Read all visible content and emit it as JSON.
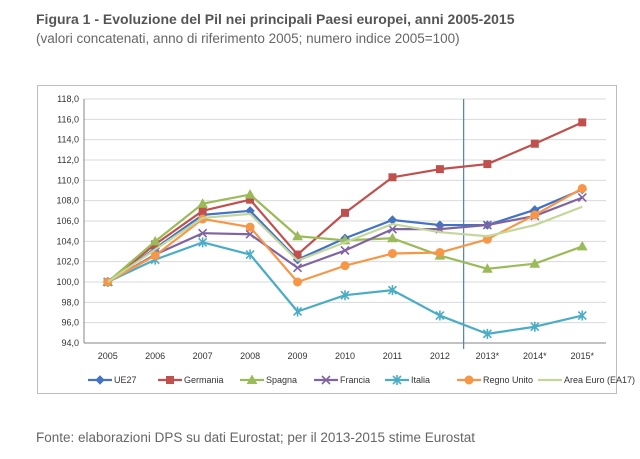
{
  "figure": {
    "title": "Figura 1 - Evoluzione del Pil nei principali Paesi europei, anni 2005-2015",
    "subtitle": "(valori concatenati, anno di riferimento 2005; numero indice 2005=100)",
    "source": "Fonte: elaborazioni DPS su dati Eurostat; per il 2013-2015 stime Eurostat"
  },
  "chart_data": {
    "type": "line",
    "title": "",
    "xlabel": "",
    "ylabel": "",
    "categories": [
      "2005",
      "2006",
      "2007",
      "2008",
      "2009",
      "2010",
      "2011",
      "2012",
      "2013*",
      "2014*",
      "2015*"
    ],
    "ylim": [
      94,
      118
    ],
    "yticks": [
      "94,0",
      "96,0",
      "98,0",
      "100,0",
      "102,0",
      "104,0",
      "106,0",
      "108,0",
      "110,0",
      "112,0",
      "114,0",
      "116,0",
      "118,0"
    ],
    "grid": true,
    "legend_position": "bottom",
    "vertical_marker_between": [
      "2012",
      "2013*"
    ],
    "series": [
      {
        "name": "UE27",
        "color": "#4472c4",
        "marker": "diamond",
        "values": [
          100.0,
          103.3,
          106.6,
          107.0,
          102.2,
          104.3,
          106.1,
          105.6,
          105.6,
          107.1,
          109.1
        ]
      },
      {
        "name": "Germania",
        "color": "#c0504d",
        "marker": "square",
        "values": [
          100.0,
          103.7,
          107.0,
          108.1,
          102.7,
          106.8,
          110.3,
          111.1,
          111.6,
          113.6,
          115.7
        ]
      },
      {
        "name": "Spagna",
        "color": "#9bbb59",
        "marker": "triangle",
        "values": [
          100.0,
          104.0,
          107.7,
          108.6,
          104.5,
          104.1,
          104.3,
          102.6,
          101.3,
          101.8,
          103.5
        ]
      },
      {
        "name": "Francia",
        "color": "#8064a2",
        "marker": "x",
        "values": [
          100.0,
          102.7,
          104.8,
          104.7,
          101.4,
          103.1,
          105.2,
          105.2,
          105.6,
          106.5,
          108.3
        ]
      },
      {
        "name": "Italia",
        "color": "#4bacc6",
        "marker": "star",
        "values": [
          100.0,
          102.2,
          103.9,
          102.7,
          97.1,
          98.7,
          99.2,
          96.7,
          94.9,
          95.6,
          96.7
        ]
      },
      {
        "name": "Regno Unito",
        "color": "#f79646",
        "marker": "circle",
        "values": [
          100.0,
          102.6,
          106.2,
          105.4,
          100.0,
          101.6,
          102.8,
          102.9,
          104.2,
          106.6,
          109.2
        ]
      },
      {
        "name": "Area Euro (EA17)",
        "color": "#c4d79b",
        "marker": "none",
        "values": [
          100.0,
          103.2,
          106.3,
          106.7,
          102.1,
          103.9,
          105.7,
          104.9,
          104.5,
          105.6,
          107.4
        ]
      }
    ]
  }
}
